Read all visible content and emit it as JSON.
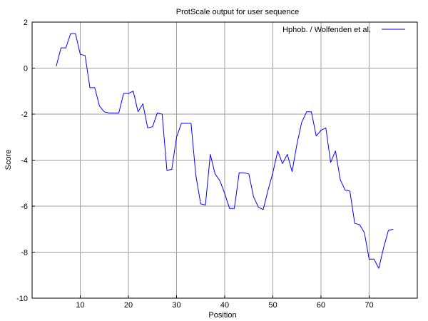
{
  "chart_data": {
    "type": "line",
    "title": "ProtScale output for user sequence",
    "xlabel": "Position",
    "ylabel": "Score",
    "xlim": [
      0,
      80
    ],
    "ylim": [
      -10,
      2
    ],
    "xticks": [
      10,
      20,
      30,
      40,
      50,
      60,
      70
    ],
    "yticks": [
      2,
      0,
      -2,
      -4,
      -6,
      -8,
      -10
    ],
    "grid": true,
    "legend_position": "top-right",
    "series": [
      {
        "name": "Hphob. / Wolfenden et al.",
        "color": "#0000ff",
        "x": [
          5,
          6,
          7,
          8,
          9,
          10,
          11,
          12,
          13,
          14,
          15,
          16,
          17,
          18,
          19,
          20,
          21,
          22,
          23,
          24,
          25,
          26,
          27,
          28,
          29,
          30,
          31,
          32,
          33,
          34,
          35,
          36,
          37,
          38,
          39,
          40,
          41,
          42,
          43,
          44,
          45,
          46,
          47,
          48,
          49,
          50,
          51,
          52,
          53,
          54,
          55,
          56,
          57,
          58,
          59,
          60,
          61,
          62,
          63,
          64,
          65,
          66,
          67,
          68,
          69,
          70,
          71,
          72,
          73,
          74,
          75
        ],
        "y": [
          0.08,
          0.88,
          0.88,
          1.5,
          1.5,
          0.6,
          0.55,
          -0.85,
          -0.85,
          -1.65,
          -1.9,
          -1.95,
          -1.95,
          -1.95,
          -1.1,
          -1.1,
          -1.0,
          -1.9,
          -1.55,
          -2.6,
          -2.55,
          -1.95,
          -2.0,
          -4.45,
          -4.4,
          -3.0,
          -2.4,
          -2.4,
          -2.4,
          -4.65,
          -5.9,
          -5.95,
          -3.75,
          -4.6,
          -4.9,
          -5.45,
          -6.1,
          -6.1,
          -4.55,
          -4.55,
          -4.6,
          -5.6,
          -6.05,
          -6.15,
          -5.3,
          -4.55,
          -3.6,
          -4.15,
          -3.75,
          -4.5,
          -3.3,
          -2.35,
          -1.9,
          -1.9,
          -2.95,
          -2.7,
          -2.6,
          -4.1,
          -3.6,
          -4.85,
          -5.3,
          -5.35,
          -6.75,
          -6.8,
          -7.15,
          -8.3,
          -8.3,
          -8.7,
          -7.8,
          -7.05,
          -7.0
        ]
      }
    ]
  }
}
